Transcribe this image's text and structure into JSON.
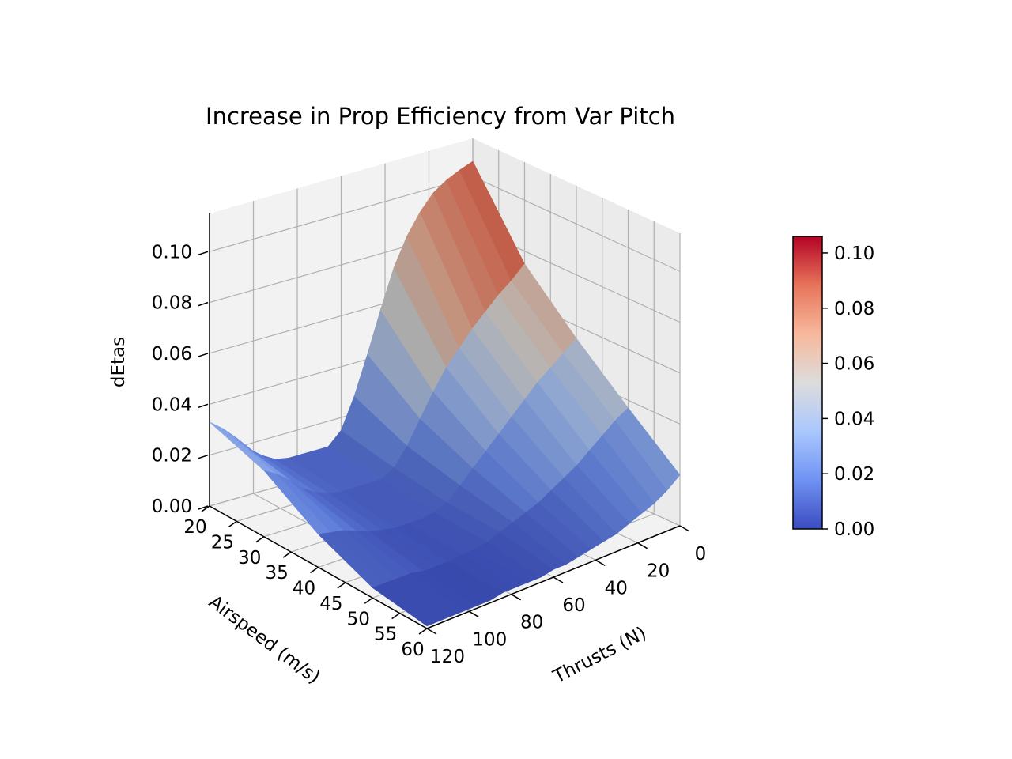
{
  "chart_data": {
    "type": "surface3d",
    "title": "Increase in Prop Efficiency from Var Pitch",
    "xlabel": "Thrusts (N)",
    "ylabel": "Airspeed (m/s)",
    "zlabel": "dEtas",
    "x_ticks": [
      "0",
      "20",
      "40",
      "60",
      "80",
      "100",
      "120"
    ],
    "y_ticks": [
      "20",
      "25",
      "30",
      "35",
      "40",
      "45",
      "50",
      "55",
      "60"
    ],
    "z_ticks": [
      "0.00",
      "0.02",
      "0.04",
      "0.06",
      "0.08",
      "0.10"
    ],
    "xlim": [
      0,
      120
    ],
    "ylim": [
      20,
      60
    ],
    "zlim": [
      0,
      0.115
    ],
    "grid": true,
    "colormap": "coolwarm",
    "cmap_colors": [
      "#3b4cc0",
      "#6f92f3",
      "#aac7fd",
      "#dddcdc",
      "#f7b89c",
      "#e7745b",
      "#b40426"
    ],
    "colorbar": {
      "range": [
        0,
        0.106
      ],
      "ticks": [
        "0.00",
        "0.02",
        "0.04",
        "0.06",
        "0.08",
        "0.10"
      ],
      "placement": "right"
    },
    "thrusts": [
      0,
      6,
      12,
      18,
      24,
      30,
      36,
      42,
      48,
      54,
      60,
      66,
      72,
      78,
      84,
      90,
      96,
      102,
      108,
      114,
      120
    ],
    "airspeeds": [
      20,
      30,
      40,
      50,
      60
    ],
    "surface": [
      [
        0.106,
        0.104,
        0.1015,
        0.098,
        0.092,
        0.084,
        0.073,
        0.058,
        0.042,
        0.027,
        0.015,
        0.01,
        0.01,
        0.01,
        0.01,
        0.011,
        0.014,
        0.018,
        0.024,
        0.029,
        0.033
      ],
      [
        0.075,
        0.07,
        0.066,
        0.061,
        0.056,
        0.05,
        0.044,
        0.036,
        0.027,
        0.018,
        0.011,
        0.008,
        0.008,
        0.008,
        0.008,
        0.009,
        0.011,
        0.014,
        0.019,
        0.023,
        0.026
      ],
      [
        0.055,
        0.051,
        0.047,
        0.043,
        0.038,
        0.033,
        0.028,
        0.023,
        0.018,
        0.013,
        0.008,
        0.006,
        0.005,
        0.005,
        0.005,
        0.006,
        0.007,
        0.009,
        0.011,
        0.012,
        0.013
      ],
      [
        0.037,
        0.034,
        0.03,
        0.026,
        0.022,
        0.019,
        0.016,
        0.013,
        0.011,
        0.009,
        0.007,
        0.005,
        0.004,
        0.004,
        0.003,
        0.003,
        0.003,
        0.004,
        0.004,
        0.004,
        0.004
      ],
      [
        0.02,
        0.016,
        0.013,
        0.011,
        0.009,
        0.007,
        0.006,
        0.005,
        0.004,
        0.003,
        0.003,
        0.002,
        0.002,
        0.002,
        0.002,
        0.001,
        0.001,
        0.001,
        0.001,
        0.001,
        0.001
      ]
    ]
  }
}
